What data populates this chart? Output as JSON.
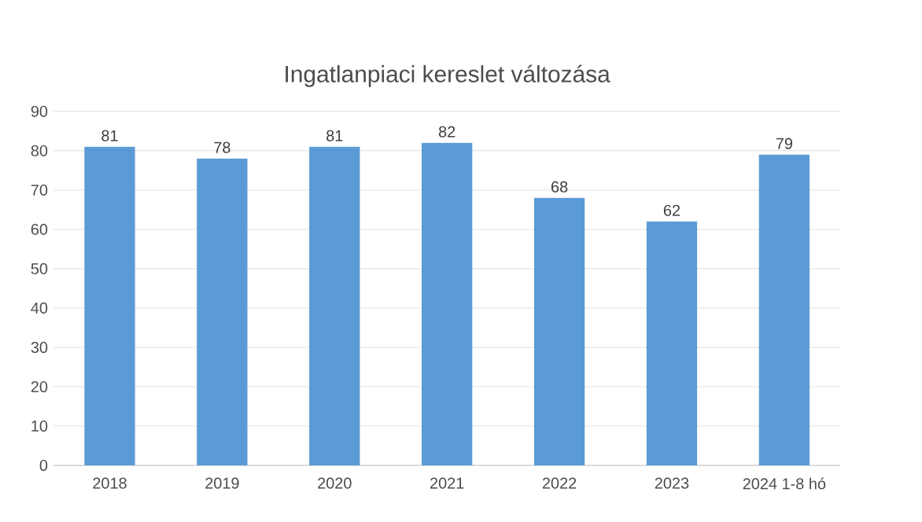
{
  "chart_data": {
    "type": "bar",
    "title": "Ingatlanpiaci kereslet változása",
    "categories": [
      "2018",
      "2019",
      "2020",
      "2021",
      "2022",
      "2023",
      "2024 1-8 hó"
    ],
    "values": [
      81,
      78,
      81,
      82,
      68,
      62,
      79
    ],
    "color": "#5b9bd5",
    "ylim": [
      0,
      90
    ],
    "yticks": [
      0,
      10,
      20,
      30,
      40,
      50,
      60,
      70,
      80,
      90
    ],
    "grid": "y",
    "data_labels": true
  }
}
